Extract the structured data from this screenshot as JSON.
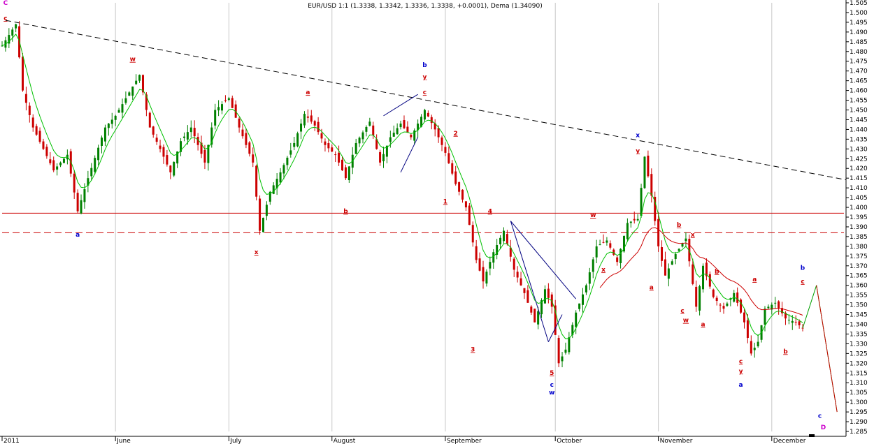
{
  "chart_data": {
    "type": "candlestick",
    "title": "EUR/USD 1:1 (1.3338, 1.3342, 1.3336, 1.3338, +0.0001), Dema (1.34090)",
    "y_axis": {
      "position": "right",
      "min": 1.285,
      "max": 1.505,
      "tick_labels": [
        "1.505",
        "1.500",
        "1.495",
        "1.490",
        "1.485",
        "1.480",
        "1.475",
        "1.470",
        "1.465",
        "1.460",
        "1.455",
        "1.450",
        "1.445",
        "1.440",
        "1.435",
        "1.430",
        "1.425",
        "1.420",
        "1.415",
        "1.410",
        "1.405",
        "1.400",
        "1.395",
        "1.390",
        "1.385",
        "1.380",
        "1.375",
        "1.370",
        "1.365",
        "1.360",
        "1.355",
        "1.350",
        "1.345",
        "1.340",
        "1.335",
        "1.330",
        "1.325",
        "1.320",
        "1.315",
        "1.310",
        "1.305",
        "1.300",
        "1.295",
        "1.290",
        "1.285"
      ]
    },
    "x_axis": {
      "month_labels": [
        "2011",
        "June",
        "July",
        "August",
        "September",
        "October",
        "November",
        "December"
      ],
      "month_index": [
        0,
        33,
        66,
        96,
        129,
        161,
        191,
        224
      ]
    },
    "x_count": 246,
    "price_path": [
      [
        0,
        1.483
      ],
      [
        4,
        1.494
      ],
      [
        6,
        1.46
      ],
      [
        9,
        1.441
      ],
      [
        12,
        1.43
      ],
      [
        15,
        1.419
      ],
      [
        19,
        1.427
      ],
      [
        22,
        1.398
      ],
      [
        25,
        1.415
      ],
      [
        30,
        1.441
      ],
      [
        33,
        1.447
      ],
      [
        36,
        1.456
      ],
      [
        40,
        1.468
      ],
      [
        43,
        1.441
      ],
      [
        46,
        1.43
      ],
      [
        49,
        1.418
      ],
      [
        52,
        1.434
      ],
      [
        55,
        1.441
      ],
      [
        59,
        1.423
      ],
      [
        62,
        1.45
      ],
      [
        66,
        1.456
      ],
      [
        69,
        1.441
      ],
      [
        73,
        1.423
      ],
      [
        75,
        1.388
      ],
      [
        78,
        1.408
      ],
      [
        81,
        1.418
      ],
      [
        85,
        1.433
      ],
      [
        88,
        1.448
      ],
      [
        91,
        1.442
      ],
      [
        94,
        1.432
      ],
      [
        97,
        1.427
      ],
      [
        100,
        1.415
      ],
      [
        103,
        1.433
      ],
      [
        107,
        1.444
      ],
      [
        110,
        1.423
      ],
      [
        113,
        1.436
      ],
      [
        116,
        1.443
      ],
      [
        119,
        1.436
      ],
      [
        123,
        1.45
      ],
      [
        126,
        1.44
      ],
      [
        129,
        1.428
      ],
      [
        132,
        1.412
      ],
      [
        135,
        1.4
      ],
      [
        138,
        1.373
      ],
      [
        140,
        1.362
      ],
      [
        143,
        1.377
      ],
      [
        146,
        1.388
      ],
      [
        149,
        1.368
      ],
      [
        152,
        1.356
      ],
      [
        155,
        1.341
      ],
      [
        158,
        1.358
      ],
      [
        160,
        1.349
      ],
      [
        162,
        1.32
      ],
      [
        164,
        1.327
      ],
      [
        167,
        1.346
      ],
      [
        170,
        1.36
      ],
      [
        173,
        1.38
      ],
      [
        176,
        1.383
      ],
      [
        179,
        1.372
      ],
      [
        182,
        1.392
      ],
      [
        185,
        1.394
      ],
      [
        187,
        1.426
      ],
      [
        189,
        1.406
      ],
      [
        191,
        1.38
      ],
      [
        193,
        1.365
      ],
      [
        196,
        1.376
      ],
      [
        199,
        1.384
      ],
      [
        202,
        1.349
      ],
      [
        204,
        1.37
      ],
      [
        207,
        1.354
      ],
      [
        210,
        1.348
      ],
      [
        213,
        1.356
      ],
      [
        216,
        1.341
      ],
      [
        218,
        1.325
      ],
      [
        220,
        1.331
      ],
      [
        222,
        1.348
      ],
      [
        225,
        1.351
      ],
      [
        228,
        1.343
      ],
      [
        231,
        1.341
      ],
      [
        233,
        1.338
      ]
    ],
    "projection": [
      [
        233,
        1.338
      ],
      [
        237,
        1.36
      ],
      [
        243,
        1.295
      ]
    ],
    "series": [
      {
        "name": "",
        "color": "#00c000"
      },
      {
        "name": "",
        "color": "#cc0000"
      }
    ],
    "horizontal_lines": [
      {
        "y": 1.397,
        "style": "solid",
        "color": "#cc0000"
      },
      {
        "y": 1.387,
        "style": "dashed",
        "color": "#cc0000"
      }
    ],
    "trendline": {
      "from": [
        1,
        1.496
      ],
      "to": [
        246,
        1.414
      ],
      "style": "dashed",
      "color": "#000000"
    },
    "channels": [
      {
        "color": "#000080",
        "lines": [
          [
            [
              111,
              1.447
            ],
            [
              121,
              1.458
            ]
          ],
          [
            [
              121,
              1.436
            ],
            [
              116,
              1.418
            ]
          ]
        ]
      },
      {
        "color": "#000080",
        "lines": [
          [
            [
              148,
              1.393
            ],
            [
              167,
              1.353
            ]
          ],
          [
            [
              148,
              1.393
            ],
            [
              159,
              1.331
            ]
          ],
          [
            [
              159,
              1.331
            ],
            [
              163,
              1.345
            ]
          ]
        ]
      }
    ],
    "wave_labels": [
      {
        "text": "C",
        "x": 1,
        "y": 1.504,
        "color": "#cc00cc"
      },
      {
        "text": "c",
        "x": 1,
        "y": 1.496,
        "color": "#cc0000",
        "underline": true
      },
      {
        "text": "w",
        "x": 38,
        "y": 1.475,
        "color": "#cc0000",
        "underline": true
      },
      {
        "text": "a",
        "x": 22,
        "y": 1.385,
        "color": "#0000cc"
      },
      {
        "text": "a",
        "x": 89,
        "y": 1.458,
        "color": "#cc0000",
        "underline": true
      },
      {
        "text": "b",
        "x": 100,
        "y": 1.397,
        "color": "#cc0000",
        "underline": true
      },
      {
        "text": "x",
        "x": 74,
        "y": 1.376,
        "color": "#cc0000",
        "underline": true
      },
      {
        "text": "b",
        "x": 123,
        "y": 1.472,
        "color": "#0000cc"
      },
      {
        "text": "y",
        "x": 123,
        "y": 1.466,
        "color": "#cc0000",
        "underline": true
      },
      {
        "text": "c",
        "x": 123,
        "y": 1.458,
        "color": "#cc0000",
        "underline": true
      },
      {
        "text": "2",
        "x": 132,
        "y": 1.437,
        "color": "#cc0000",
        "underline": true
      },
      {
        "text": "1",
        "x": 129,
        "y": 1.402,
        "color": "#cc0000",
        "underline": true
      },
      {
        "text": "3",
        "x": 137,
        "y": 1.326,
        "color": "#cc0000",
        "underline": true
      },
      {
        "text": "4",
        "x": 142,
        "y": 1.397,
        "color": "#cc0000",
        "underline": true
      },
      {
        "text": "5",
        "x": 160,
        "y": 1.314,
        "color": "#cc0000",
        "underline": true
      },
      {
        "text": "c",
        "x": 160,
        "y": 1.308,
        "color": "#0000cc"
      },
      {
        "text": "w",
        "x": 160,
        "y": 1.304,
        "color": "#0000cc"
      },
      {
        "text": "w",
        "x": 172,
        "y": 1.395,
        "color": "#cc0000",
        "underline": true
      },
      {
        "text": "x",
        "x": 175,
        "y": 1.367,
        "color": "#cc0000",
        "underline": true
      },
      {
        "text": "x",
        "x": 185,
        "y": 1.436,
        "color": "#0000cc"
      },
      {
        "text": "y",
        "x": 185,
        "y": 1.428,
        "color": "#cc0000",
        "underline": true
      },
      {
        "text": "a",
        "x": 189,
        "y": 1.358,
        "color": "#cc0000",
        "underline": true
      },
      {
        "text": "b",
        "x": 197,
        "y": 1.39,
        "color": "#cc0000",
        "underline": true
      },
      {
        "text": "x",
        "x": 201,
        "y": 1.385,
        "color": "#cc0000",
        "underline": true
      },
      {
        "text": "c",
        "x": 198,
        "y": 1.346,
        "color": "#cc0000",
        "underline": true
      },
      {
        "text": "w",
        "x": 199,
        "y": 1.341,
        "color": "#cc0000",
        "underline": true
      },
      {
        "text": "a",
        "x": 204,
        "y": 1.339,
        "color": "#cc0000",
        "underline": true
      },
      {
        "text": "b",
        "x": 208,
        "y": 1.366,
        "color": "#cc0000",
        "underline": true
      },
      {
        "text": "a",
        "x": 219,
        "y": 1.362,
        "color": "#cc0000",
        "underline": true
      },
      {
        "text": "c",
        "x": 215,
        "y": 1.32,
        "color": "#cc0000",
        "underline": true
      },
      {
        "text": "y",
        "x": 215,
        "y": 1.315,
        "color": "#cc0000",
        "underline": true
      },
      {
        "text": "a",
        "x": 215,
        "y": 1.308,
        "color": "#0000cc"
      },
      {
        "text": "b",
        "x": 228,
        "y": 1.325,
        "color": "#cc0000",
        "underline": true
      },
      {
        "text": "b",
        "x": 233,
        "y": 1.368,
        "color": "#0000cc"
      },
      {
        "text": "c",
        "x": 233,
        "y": 1.361,
        "color": "#cc0000",
        "underline": true
      },
      {
        "text": "c",
        "x": 238,
        "y": 1.292,
        "color": "#0000cc"
      },
      {
        "text": "D",
        "x": 239,
        "y": 1.286,
        "color": "#cc00cc"
      }
    ]
  }
}
